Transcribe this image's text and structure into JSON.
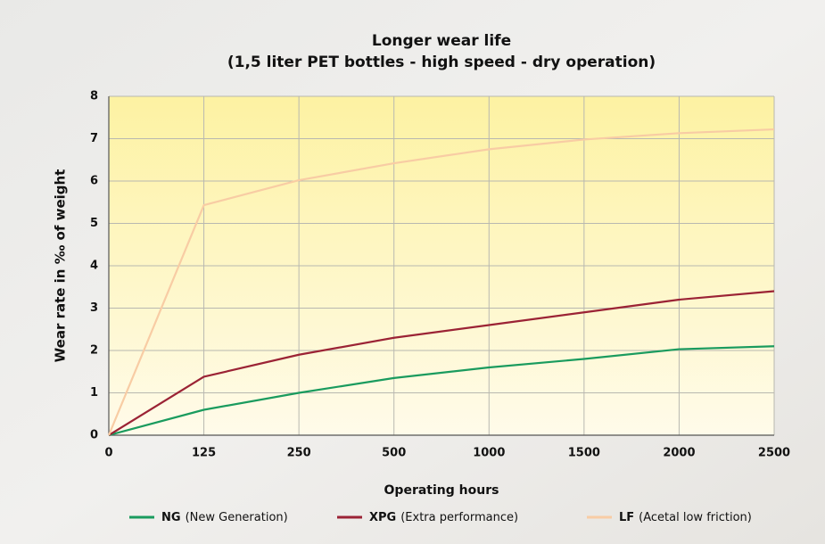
{
  "chart_data": {
    "type": "line",
    "title": "Longer wear life",
    "subtitle": "(1,5 liter PET bottles - high speed - dry operation)",
    "x_label": "Operating hours",
    "y_label": "Wear rate in ‰ of weight",
    "categories": [
      "0",
      "125",
      "250",
      "500",
      "1000",
      "1500",
      "2000",
      "2500"
    ],
    "series": [
      {
        "name": "NG",
        "description": "(New Generation)",
        "color": "#1a9b5e",
        "values": [
          0,
          0.6,
          1.0,
          1.35,
          1.6,
          1.8,
          2.03,
          2.1
        ]
      },
      {
        "name": "XPG",
        "description": "(Extra performance)",
        "color": "#9b2335",
        "values": [
          0,
          1.38,
          1.9,
          2.3,
          2.6,
          2.9,
          3.2,
          3.4
        ]
      },
      {
        "name": "LF",
        "description": "(Acetal low friction)",
        "color": "#f8cca4",
        "values": [
          0,
          5.43,
          6.02,
          6.42,
          6.75,
          6.98,
          7.13,
          7.22
        ]
      }
    ],
    "ylim": [
      0,
      8
    ],
    "yticks": [
      0,
      1,
      2,
      3,
      4,
      5,
      6,
      7,
      8
    ],
    "grid": true,
    "legend": "bottom"
  }
}
